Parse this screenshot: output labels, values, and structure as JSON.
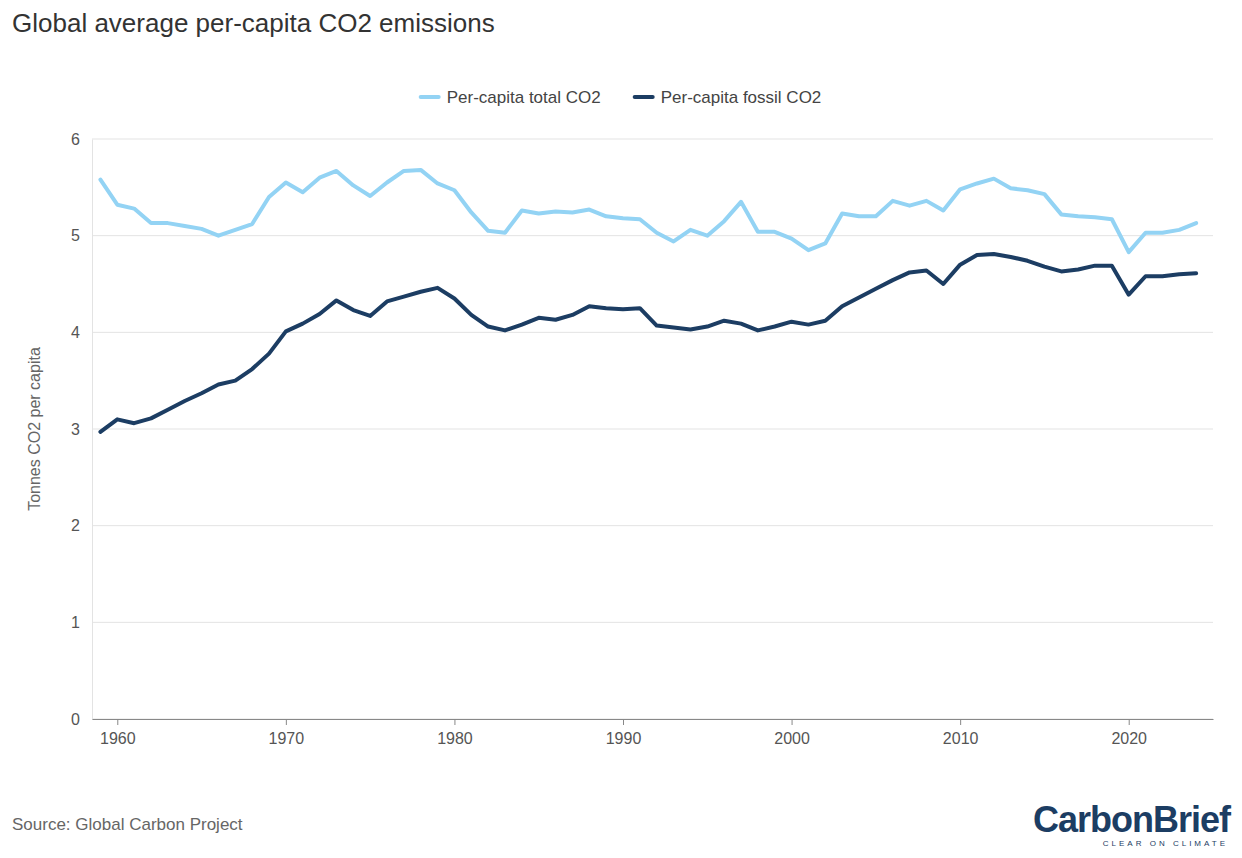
{
  "chart_data": {
    "type": "line",
    "title": "Global average per-capita CO2 emissions",
    "y_label": "Tonnes CO2 per capita",
    "source": "Source: Global Carbon Project",
    "logo": "CarbonBrief",
    "logo_tagline": "CLEAR ON CLIMATE",
    "x": [
      1959,
      1960,
      1961,
      1962,
      1963,
      1964,
      1965,
      1966,
      1967,
      1968,
      1969,
      1970,
      1971,
      1972,
      1973,
      1974,
      1975,
      1976,
      1977,
      1978,
      1979,
      1980,
      1981,
      1982,
      1983,
      1984,
      1985,
      1986,
      1987,
      1988,
      1989,
      1990,
      1991,
      1992,
      1993,
      1994,
      1995,
      1996,
      1997,
      1998,
      1999,
      2000,
      2001,
      2002,
      2003,
      2004,
      2005,
      2006,
      2007,
      2008,
      2009,
      2010,
      2011,
      2012,
      2013,
      2014,
      2015,
      2016,
      2017,
      2018,
      2019,
      2020,
      2021,
      2022,
      2023,
      2024
    ],
    "series": [
      {
        "name": "Per-capita total CO2",
        "color": "#93d3f4",
        "values": [
          5.58,
          5.32,
          5.28,
          5.13,
          5.13,
          5.1,
          5.07,
          5.0,
          5.06,
          5.12,
          5.4,
          5.55,
          5.45,
          5.6,
          5.67,
          5.52,
          5.41,
          5.55,
          5.67,
          5.68,
          5.54,
          5.47,
          5.24,
          5.05,
          5.03,
          5.26,
          5.23,
          5.25,
          5.24,
          5.27,
          5.2,
          5.18,
          5.17,
          5.03,
          4.94,
          5.06,
          5.0,
          5.15,
          5.35,
          5.04,
          5.04,
          4.97,
          4.85,
          4.92,
          5.23,
          5.2,
          5.2,
          5.36,
          5.31,
          5.36,
          5.26,
          5.48,
          5.54,
          5.59,
          5.49,
          5.47,
          5.43,
          5.22,
          5.2,
          5.19,
          5.17,
          4.83,
          5.03,
          5.03,
          5.06,
          5.13
        ]
      },
      {
        "name": "Per-capita fossil CO2",
        "color": "#1c3d63",
        "values": [
          2.97,
          3.1,
          3.06,
          3.11,
          3.2,
          3.29,
          3.37,
          3.46,
          3.5,
          3.62,
          3.78,
          4.01,
          4.09,
          4.19,
          4.33,
          4.23,
          4.17,
          4.32,
          4.37,
          4.42,
          4.46,
          4.35,
          4.18,
          4.06,
          4.02,
          4.08,
          4.15,
          4.13,
          4.18,
          4.27,
          4.25,
          4.24,
          4.25,
          4.07,
          4.05,
          4.03,
          4.06,
          4.12,
          4.09,
          4.02,
          4.06,
          4.11,
          4.08,
          4.12,
          4.27,
          4.36,
          4.45,
          4.54,
          4.62,
          4.64,
          4.5,
          4.7,
          4.8,
          4.81,
          4.78,
          4.74,
          4.68,
          4.63,
          4.65,
          4.69,
          4.69,
          4.39,
          4.58,
          4.58,
          4.6,
          4.61
        ]
      }
    ],
    "xlim": [
      1958.5,
      2025
    ],
    "ylim": [
      0,
      6
    ],
    "xticks": [
      1960,
      1970,
      1980,
      1990,
      2000,
      2010,
      2020
    ],
    "yticks": [
      0,
      1,
      2,
      3,
      4,
      5,
      6
    ],
    "grid": true,
    "legend": "top"
  }
}
